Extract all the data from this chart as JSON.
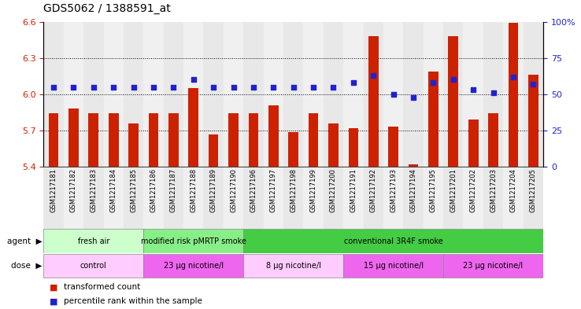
{
  "title": "GDS5062 / 1388591_at",
  "samples": [
    "GSM1217181",
    "GSM1217182",
    "GSM1217183",
    "GSM1217184",
    "GSM1217185",
    "GSM1217186",
    "GSM1217187",
    "GSM1217188",
    "GSM1217189",
    "GSM1217190",
    "GSM1217196",
    "GSM1217197",
    "GSM1217198",
    "GSM1217199",
    "GSM1217200",
    "GSM1217191",
    "GSM1217192",
    "GSM1217193",
    "GSM1217194",
    "GSM1217195",
    "GSM1217201",
    "GSM1217202",
    "GSM1217203",
    "GSM1217204",
    "GSM1217205"
  ],
  "bar_values": [
    5.84,
    5.88,
    5.84,
    5.84,
    5.76,
    5.84,
    5.84,
    6.05,
    5.67,
    5.84,
    5.84,
    5.91,
    5.69,
    5.84,
    5.76,
    5.72,
    6.48,
    5.73,
    5.42,
    6.19,
    6.48,
    5.79,
    5.84,
    6.59,
    6.16
  ],
  "percentile_values": [
    55,
    55,
    55,
    55,
    55,
    55,
    55,
    60,
    55,
    55,
    55,
    55,
    55,
    55,
    55,
    58,
    63,
    50,
    48,
    58,
    60,
    53,
    51,
    62,
    57
  ],
  "ylim_left": [
    5.4,
    6.6
  ],
  "ylim_right": [
    0,
    100
  ],
  "bar_color": "#cc2200",
  "dot_color": "#2222cc",
  "gridlines": [
    5.7,
    6.0,
    6.3
  ],
  "yticks_left": [
    5.4,
    5.7,
    6.0,
    6.3,
    6.6
  ],
  "yticks_right": [
    0,
    25,
    50,
    75,
    100
  ],
  "agent_groups": [
    {
      "label": "fresh air",
      "start": 0,
      "end": 5,
      "color": "#ccffcc"
    },
    {
      "label": "modified risk pMRTP smoke",
      "start": 5,
      "end": 10,
      "color": "#88ee88"
    },
    {
      "label": "conventional 3R4F smoke",
      "start": 10,
      "end": 25,
      "color": "#44cc44"
    }
  ],
  "dose_groups": [
    {
      "label": "control",
      "start": 0,
      "end": 5,
      "color": "#ffccff"
    },
    {
      "label": "23 μg nicotine/l",
      "start": 5,
      "end": 10,
      "color": "#ee66ee"
    },
    {
      "label": "8 μg nicotine/l",
      "start": 10,
      "end": 15,
      "color": "#ffccff"
    },
    {
      "label": "15 μg nicotine/l",
      "start": 15,
      "end": 20,
      "color": "#ee66ee"
    },
    {
      "label": "23 μg nicotine/l",
      "start": 20,
      "end": 25,
      "color": "#ee66ee"
    }
  ],
  "legend_items": [
    {
      "label": "transformed count",
      "color": "#cc2200"
    },
    {
      "label": "percentile rank within the sample",
      "color": "#2222cc"
    }
  ],
  "fig_width": 7.38,
  "fig_height": 3.93,
  "dpi": 100
}
